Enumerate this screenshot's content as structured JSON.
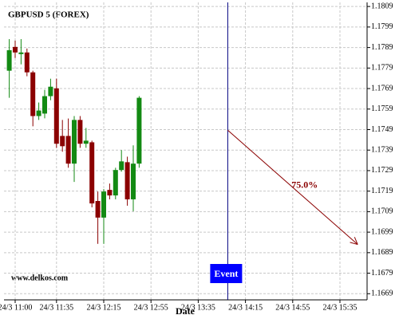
{
  "chart_data": {
    "type": "candlestick",
    "title": "GBPUSD 5 (FOREX)",
    "xlabel": "Date",
    "watermark": "www.delkos.com",
    "x": [
      "24/3 10:55",
      "24/3 11:00",
      "24/3 11:05",
      "24/3 11:10",
      "24/3 11:15",
      "24/3 11:20",
      "24/3 11:25",
      "24/3 11:30",
      "24/3 11:35",
      "24/3 11:40",
      "24/3 11:45",
      "24/3 11:50",
      "24/3 11:55",
      "24/3 12:00",
      "24/3 12:05",
      "24/3 12:10",
      "24/3 12:15",
      "24/3 12:20",
      "24/3 12:25",
      "24/3 12:30",
      "24/3 12:35",
      "24/3 12:40",
      "24/3 12:45"
    ],
    "open": [
      1.17777,
      1.17893,
      1.17858,
      1.17866,
      1.17769,
      1.17556,
      1.17568,
      1.17653,
      1.17691,
      1.17459,
      1.17459,
      1.17324,
      1.17537,
      1.17421,
      1.17428,
      1.17142,
      1.17061,
      1.17196,
      1.17169,
      1.17293,
      1.17331,
      1.1715,
      1.17324
    ],
    "high": [
      1.17931,
      1.17924,
      1.17931,
      1.17885,
      1.17777,
      1.17622,
      1.17684,
      1.17738,
      1.17738,
      1.17537,
      1.17544,
      1.17556,
      1.17556,
      1.17498,
      1.17436,
      1.17188,
      1.172,
      1.17227,
      1.17304,
      1.1739,
      1.17358,
      1.17413,
      1.17653
    ],
    "low": [
      1.17645,
      1.17839,
      1.17808,
      1.1775,
      1.17506,
      1.17537,
      1.17545,
      1.17633,
      1.17401,
      1.17382,
      1.17304,
      1.17235,
      1.17401,
      1.17401,
      1.17111,
      1.16933,
      1.16933,
      1.1715,
      1.1715,
      1.17285,
      1.17119,
      1.17092,
      1.17304
    ],
    "close": [
      1.17877,
      1.17866,
      1.17866,
      1.17769,
      1.17556,
      1.17583,
      1.17653,
      1.17699,
      1.17421,
      1.17409,
      1.17324,
      1.17537,
      1.17421,
      1.17436,
      1.1713,
      1.17061,
      1.17188,
      1.17169,
      1.17293,
      1.17335,
      1.1715,
      1.17324,
      1.17645
    ],
    "up_color": "#138a13",
    "down_color": "#8b0000",
    "ylim": [
      1.1666,
      1.1811
    ],
    "yticks": [
      1.1669,
      1.1679,
      1.1689,
      1.1699,
      1.1709,
      1.1719,
      1.1729,
      1.1739,
      1.1749,
      1.1759,
      1.1769,
      1.1779,
      1.1789,
      1.1799,
      1.1809
    ],
    "xticks": [
      "24/3 11:00",
      "24/3 11:35",
      "24/3 12:15",
      "24/3 12:55",
      "24/3 13:35",
      "24/3 14:15",
      "24/3 14:55",
      "24/3 15:35"
    ],
    "grid": true,
    "event": {
      "label": "Event",
      "x": "24/3 14:00",
      "color": "#000080"
    },
    "arrow": {
      "label": "75.0%",
      "x": [
        "24/3 14:00",
        "24/3 15:50"
      ],
      "y": [
        1.17487,
        1.1693
      ],
      "color": "#8b0000"
    }
  }
}
